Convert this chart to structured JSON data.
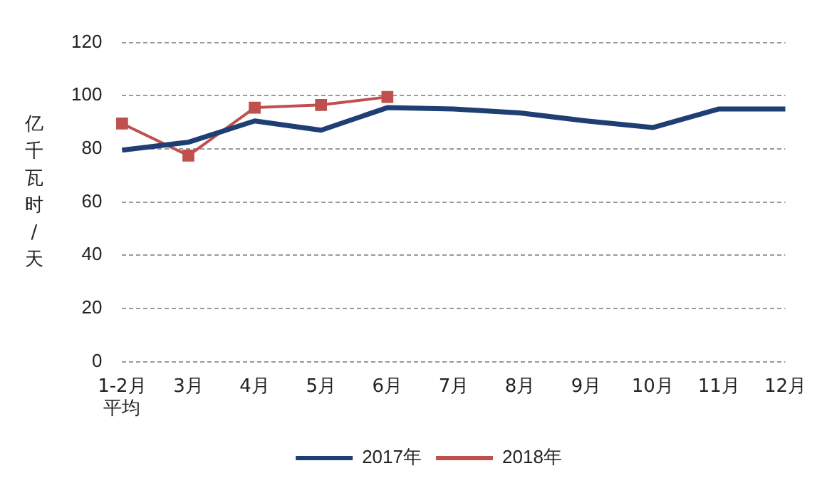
{
  "chart_data": {
    "type": "line",
    "ylabel": "亿千瓦时/天",
    "categories": [
      "1-2月平均",
      "3月",
      "4月",
      "5月",
      "6月",
      "7月",
      "8月",
      "9月",
      "10月",
      "11月",
      "12月"
    ],
    "series": [
      {
        "name": "2017年",
        "color": "#1f3f74",
        "marker": "none",
        "values": [
          79.5,
          82.5,
          90.5,
          87,
          95.5,
          95,
          93.5,
          90.5,
          88,
          95,
          95
        ]
      },
      {
        "name": "2018年",
        "color": "#c0504d",
        "marker": "square",
        "values": [
          89.5,
          77.5,
          95.5,
          96.5,
          99.5,
          null,
          null,
          null,
          null,
          null,
          null
        ]
      }
    ],
    "ylim": [
      0,
      120
    ],
    "yticks": [
      0,
      20,
      40,
      60,
      80,
      100,
      120
    ],
    "grid": "y",
    "legend": "bottom"
  }
}
